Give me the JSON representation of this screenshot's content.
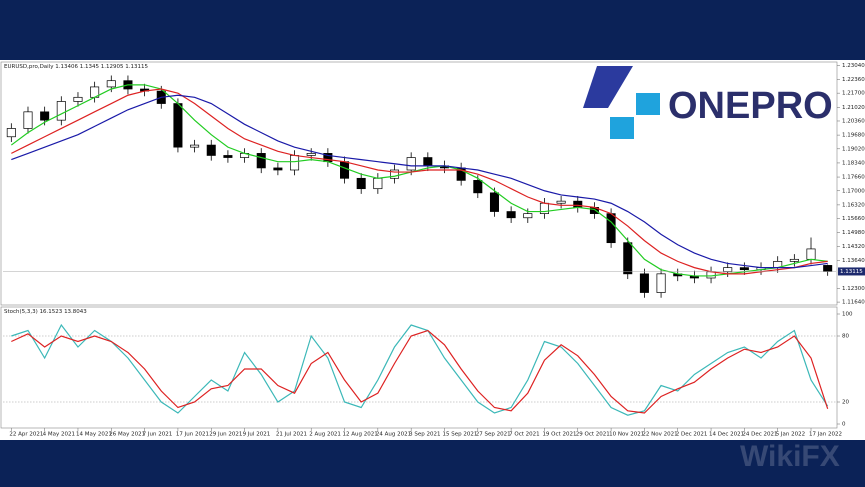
{
  "logo": {
    "text": "ONEPRO"
  },
  "watermark": {
    "text": "WikiFX"
  },
  "chart_data": [
    {
      "type": "candlestick",
      "symbol": "EURUSD,pro,Daily",
      "categories": [
        "22 Apr 2021",
        null,
        "4 May 2021",
        null,
        "14 May 2021",
        null,
        "26 May 2021",
        null,
        "7 Jun 2021",
        null,
        "17 Jun 2021",
        null,
        "29 Jun 2021",
        null,
        "9 Jul 2021",
        null,
        "21 Jul 2021",
        null,
        "2 Aug 2021",
        null,
        "12 Aug 2021",
        null,
        "24 Aug 2021",
        null,
        "3 Sep 2021",
        null,
        "15 Sep 2021",
        null,
        "27 Sep 2021",
        null,
        "7 Oct 2021",
        null,
        "19 Oct 2021",
        null,
        "29 Oct 2021",
        null,
        "10 Nov 2021",
        null,
        "22 Nov 2021",
        null,
        "2 Dec 2021",
        null,
        "14 Dec 2021",
        null,
        "24 Dec 2021",
        null,
        "5 Jan 2022",
        null,
        "17 Jan 2022",
        null
      ],
      "open": [
        1.196,
        1.2,
        1.208,
        1.204,
        1.213,
        1.215,
        1.22,
        1.223,
        1.219,
        1.218,
        1.212,
        1.191,
        1.192,
        1.187,
        1.186,
        1.188,
        1.181,
        1.18,
        1.187,
        1.188,
        1.184,
        1.176,
        1.171,
        1.176,
        1.18,
        1.186,
        1.182,
        1.181,
        1.175,
        1.169,
        1.16,
        1.157,
        1.159,
        1.164,
        1.165,
        1.162,
        1.159,
        1.145,
        1.13,
        1.121,
        1.13,
        1.129,
        1.128,
        1.131,
        1.133,
        1.132,
        1.133,
        1.136,
        1.137,
        1.13406
      ],
      "high": [
        1.2025,
        1.2105,
        1.2105,
        1.2155,
        1.2175,
        1.2225,
        1.2255,
        1.2255,
        1.2215,
        1.2205,
        1.2145,
        1.1945,
        1.1945,
        1.1895,
        1.1905,
        1.1905,
        1.1835,
        1.1895,
        1.1905,
        1.1905,
        1.1865,
        1.1785,
        1.1785,
        1.1825,
        1.1885,
        1.1885,
        1.1845,
        1.1835,
        1.1775,
        1.1715,
        1.1625,
        1.1615,
        1.1665,
        1.1675,
        1.1675,
        1.1645,
        1.1615,
        1.1475,
        1.1325,
        1.1325,
        1.1325,
        1.1315,
        1.1335,
        1.1355,
        1.1355,
        1.1355,
        1.1385,
        1.1395,
        1.1475,
        1.1345
      ],
      "low": [
        1.1935,
        1.1975,
        1.2015,
        1.2015,
        1.2105,
        1.2125,
        1.2175,
        1.2165,
        1.2155,
        1.2095,
        1.1885,
        1.1885,
        1.1845,
        1.1835,
        1.1835,
        1.1785,
        1.1775,
        1.1775,
        1.1845,
        1.1815,
        1.1735,
        1.1685,
        1.1685,
        1.1735,
        1.1775,
        1.1795,
        1.1785,
        1.1725,
        1.1665,
        1.1575,
        1.1545,
        1.1545,
        1.1565,
        1.1615,
        1.1595,
        1.1565,
        1.1425,
        1.1275,
        1.1185,
        1.1185,
        1.1265,
        1.1255,
        1.1255,
        1.1285,
        1.1295,
        1.1295,
        1.1305,
        1.1335,
        1.1345,
        1.12905
      ],
      "close": [
        1.2,
        1.208,
        1.204,
        1.213,
        1.215,
        1.22,
        1.223,
        1.219,
        1.218,
        1.212,
        1.191,
        1.192,
        1.187,
        1.186,
        1.188,
        1.181,
        1.18,
        1.187,
        1.188,
        1.184,
        1.176,
        1.171,
        1.176,
        1.18,
        1.186,
        1.182,
        1.181,
        1.175,
        1.169,
        1.16,
        1.157,
        1.159,
        1.164,
        1.165,
        1.162,
        1.159,
        1.145,
        1.13,
        1.121,
        1.13,
        1.129,
        1.128,
        1.131,
        1.133,
        1.132,
        1.133,
        1.136,
        1.137,
        1.142,
        1.13115
      ],
      "series": [
        {
          "color": "#22cc22",
          "values": [
            1.192,
            1.198,
            1.203,
            1.207,
            1.211,
            1.215,
            1.219,
            1.221,
            1.221,
            1.219,
            1.212,
            1.204,
            1.197,
            1.191,
            1.188,
            1.186,
            1.184,
            1.184,
            1.185,
            1.184,
            1.181,
            1.178,
            1.176,
            1.177,
            1.179,
            1.181,
            1.182,
            1.18,
            1.176,
            1.17,
            1.164,
            1.16,
            1.16,
            1.161,
            1.162,
            1.161,
            1.155,
            1.146,
            1.137,
            1.132,
            1.13,
            1.129,
            1.129,
            1.13,
            1.131,
            1.132,
            1.133,
            1.135,
            1.137,
            1.136
          ]
        },
        {
          "color": "#dd2222",
          "values": [
            1.188,
            1.192,
            1.196,
            1.2,
            1.204,
            1.208,
            1.212,
            1.216,
            1.218,
            1.219,
            1.217,
            1.212,
            1.206,
            1.2,
            1.195,
            1.192,
            1.189,
            1.187,
            1.186,
            1.185,
            1.184,
            1.182,
            1.18,
            1.179,
            1.179,
            1.18,
            1.18,
            1.18,
            1.178,
            1.175,
            1.171,
            1.167,
            1.164,
            1.163,
            1.163,
            1.162,
            1.159,
            1.153,
            1.146,
            1.14,
            1.136,
            1.133,
            1.131,
            1.13,
            1.13,
            1.131,
            1.132,
            1.133,
            1.135,
            1.136
          ]
        },
        {
          "color": "#1a1aa8",
          "values": [
            1.185,
            1.188,
            1.191,
            1.194,
            1.197,
            1.201,
            1.205,
            1.209,
            1.212,
            1.215,
            1.216,
            1.215,
            1.212,
            1.207,
            1.202,
            1.198,
            1.194,
            1.191,
            1.189,
            1.187,
            1.186,
            1.185,
            1.184,
            1.183,
            1.182,
            1.182,
            1.182,
            1.181,
            1.18,
            1.178,
            1.176,
            1.173,
            1.17,
            1.168,
            1.167,
            1.166,
            1.164,
            1.16,
            1.155,
            1.149,
            1.144,
            1.14,
            1.137,
            1.135,
            1.134,
            1.133,
            1.133,
            1.133,
            1.134,
            1.135
          ]
        }
      ],
      "ylim": [
        1.115,
        1.232
      ],
      "yticks": [
        {
          "value": 1.2304,
          "label": "1.23040"
        },
        {
          "value": 1.2236,
          "label": "1.22360"
        },
        {
          "value": 1.217,
          "label": "1.21700"
        },
        {
          "value": 1.2102,
          "label": "1.21020"
        },
        {
          "value": 1.2036,
          "label": "1.20360"
        },
        {
          "value": 1.1968,
          "label": "1.19680"
        },
        {
          "value": 1.1902,
          "label": "1.19020"
        },
        {
          "value": 1.1834,
          "label": "1.18340"
        },
        {
          "value": 1.1766,
          "label": "1.17660"
        },
        {
          "value": 1.17,
          "label": "1.17000"
        },
        {
          "value": 1.1632,
          "label": "1.16320"
        },
        {
          "value": 1.1566,
          "label": "1.15660"
        },
        {
          "value": 1.1498,
          "label": "1.14980"
        },
        {
          "value": 1.1432,
          "label": "1.14320"
        },
        {
          "value": 1.1364,
          "label": "1.13640"
        },
        {
          "value": 1.123,
          "label": "1.12300"
        },
        {
          "value": 1.1164,
          "label": "1.11640"
        }
      ]
    },
    {
      "type": "line",
      "name": "Stoch(5,3,3)",
      "series": [
        {
          "color": "#3cb8b8",
          "values": [
            80,
            85,
            60,
            90,
            70,
            85,
            75,
            60,
            40,
            20,
            10,
            25,
            40,
            30,
            65,
            45,
            20,
            30,
            80,
            60,
            20,
            15,
            40,
            70,
            90,
            85,
            60,
            40,
            20,
            10,
            15,
            40,
            75,
            70,
            55,
            35,
            15,
            8,
            12,
            35,
            30,
            45,
            55,
            65,
            70,
            60,
            75,
            85,
            40,
            16.1523
          ]
        },
        {
          "color": "#dd2222",
          "values": [
            75,
            82,
            70,
            80,
            75,
            80,
            75,
            65,
            50,
            30,
            15,
            20,
            32,
            35,
            50,
            50,
            35,
            28,
            55,
            65,
            40,
            20,
            28,
            55,
            80,
            85,
            72,
            50,
            30,
            15,
            12,
            28,
            58,
            72,
            62,
            45,
            25,
            12,
            10,
            25,
            32,
            38,
            50,
            60,
            68,
            65,
            70,
            80,
            60,
            13.8043
          ]
        }
      ],
      "levels": [
        80,
        20
      ],
      "ylim": [
        0,
        100
      ],
      "yticks": [
        100,
        80,
        20,
        0
      ]
    }
  ]
}
